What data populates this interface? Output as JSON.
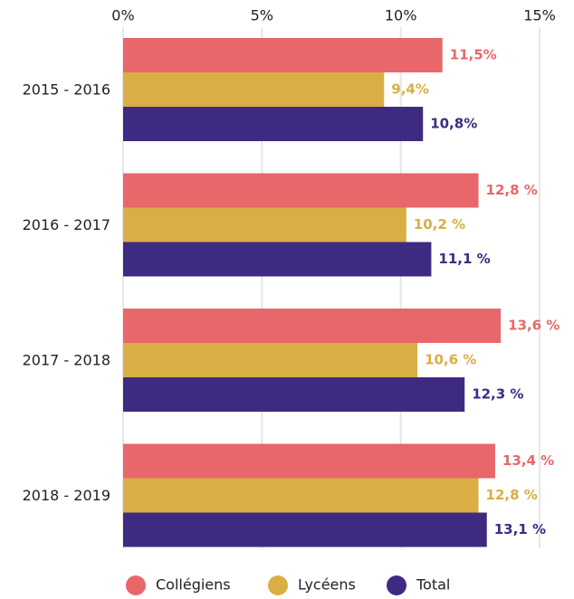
{
  "chart_data": {
    "type": "bar",
    "orientation": "horizontal",
    "categories": [
      "2015 - 2016",
      "2016 - 2017",
      "2017 - 2018",
      "2018 - 2019"
    ],
    "series": [
      {
        "name": "Collégiens",
        "color": "#e8676a",
        "values": [
          11.5,
          12.8,
          13.6,
          13.4
        ],
        "value_labels": [
          "11,5%",
          "12,8 %",
          "13,6 %",
          "13,4 %"
        ]
      },
      {
        "name": "Lycéens",
        "color": "#d9ae44",
        "values": [
          9.4,
          10.2,
          10.6,
          12.8
        ],
        "value_labels": [
          "9,4%",
          "10,2 %",
          "10,6 %",
          "12,8 %"
        ]
      },
      {
        "name": "Total",
        "color": "#3f2a82",
        "values": [
          10.8,
          11.1,
          12.3,
          13.1
        ],
        "value_labels": [
          "10,8%",
          "11,1 %",
          "12,3 %",
          "13,1 %"
        ]
      }
    ],
    "xlim": [
      0,
      15
    ],
    "xticks": [
      {
        "value": 0,
        "label": "0%"
      },
      {
        "value": 5,
        "label": "5%"
      },
      {
        "value": 10,
        "label": "10%"
      },
      {
        "value": 15,
        "label": "15%"
      }
    ],
    "grid": true,
    "legend": "bottom"
  }
}
